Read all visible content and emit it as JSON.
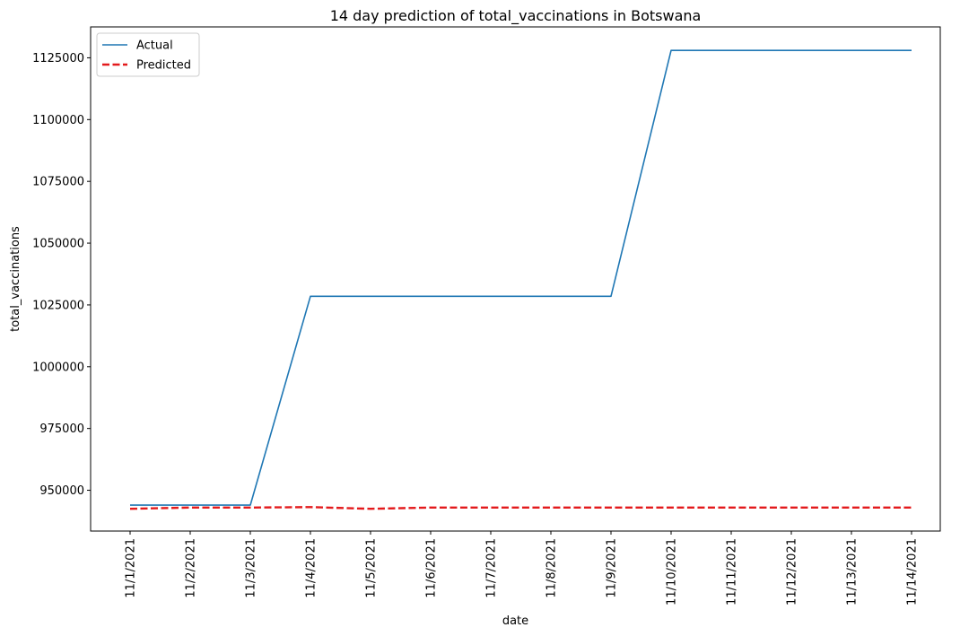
{
  "chart_data": {
    "type": "line",
    "title": "14 day prediction of total_vaccinations in Botswana",
    "xlabel": "date",
    "ylabel": "total_vaccinations",
    "categories": [
      "11/1/2021",
      "11/2/2021",
      "11/3/2021",
      "11/4/2021",
      "11/5/2021",
      "11/6/2021",
      "11/7/2021",
      "11/8/2021",
      "11/9/2021",
      "11/10/2021",
      "11/11/2021",
      "11/12/2021",
      "11/13/2021",
      "11/14/2021"
    ],
    "yticks": [
      950000,
      975000,
      1000000,
      1025000,
      1050000,
      1075000,
      1100000,
      1125000
    ],
    "ylim": [
      933500,
      1137500
    ],
    "grid": false,
    "legend_position": "top-left",
    "series": [
      {
        "name": "Actual",
        "color": "#1f77b4",
        "style": "solid",
        "values": [
          944000,
          944000,
          944000,
          1028500,
          1028500,
          1028500,
          1028500,
          1028500,
          1028500,
          1128000,
          1128000,
          1128000,
          1128000,
          1128000
        ]
      },
      {
        "name": "Predicted",
        "color": "#e31a1c",
        "style": "dashed",
        "values": [
          942500,
          943000,
          943000,
          943200,
          942500,
          943000,
          943000,
          943000,
          943000,
          943000,
          943000,
          943000,
          943000,
          943000
        ]
      }
    ]
  }
}
